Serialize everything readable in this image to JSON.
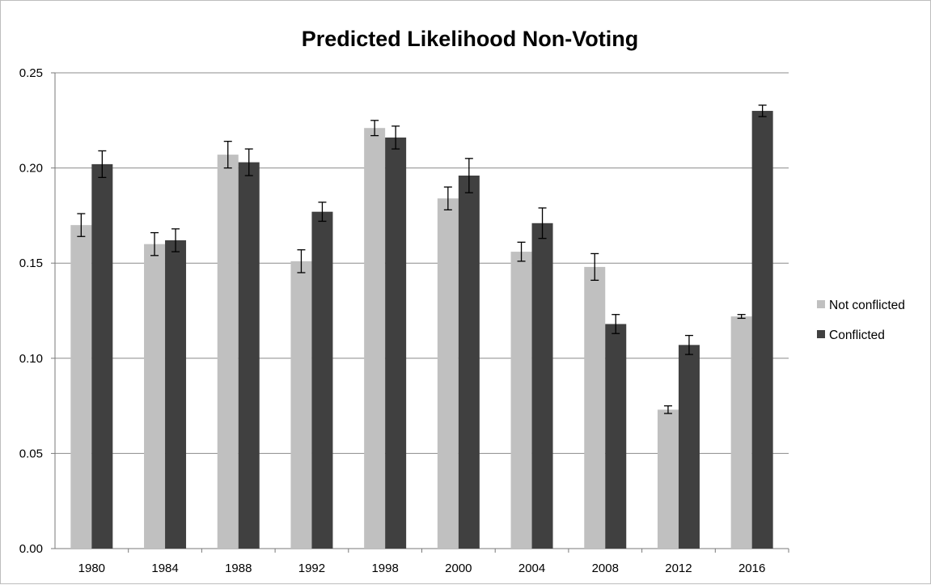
{
  "chart_data": {
    "type": "bar",
    "title": "Predicted Likelihood Non-Voting",
    "xlabel": "",
    "ylabel": "",
    "categories": [
      "1980",
      "1984",
      "1988",
      "1992",
      "1998",
      "2000",
      "2004",
      "2008",
      "2012",
      "2016"
    ],
    "ylim": [
      0,
      0.25
    ],
    "yticks": [
      "0.00",
      "0.05",
      "0.10",
      "0.15",
      "0.20",
      "0.25"
    ],
    "grid": true,
    "legend_position": "right",
    "series": [
      {
        "name": "Not conflicted",
        "color": "#c0c0c0",
        "values": [
          0.17,
          0.16,
          0.207,
          0.151,
          0.221,
          0.184,
          0.156,
          0.148,
          0.073,
          0.122
        ],
        "error": [
          0.006,
          0.006,
          0.007,
          0.006,
          0.004,
          0.006,
          0.005,
          0.007,
          0.002,
          0.001
        ]
      },
      {
        "name": "Conflicted",
        "color": "#404040",
        "values": [
          0.202,
          0.162,
          0.203,
          0.177,
          0.216,
          0.196,
          0.171,
          0.118,
          0.107,
          0.23
        ],
        "error": [
          0.007,
          0.006,
          0.007,
          0.005,
          0.006,
          0.009,
          0.008,
          0.005,
          0.005,
          0.003
        ]
      }
    ]
  }
}
